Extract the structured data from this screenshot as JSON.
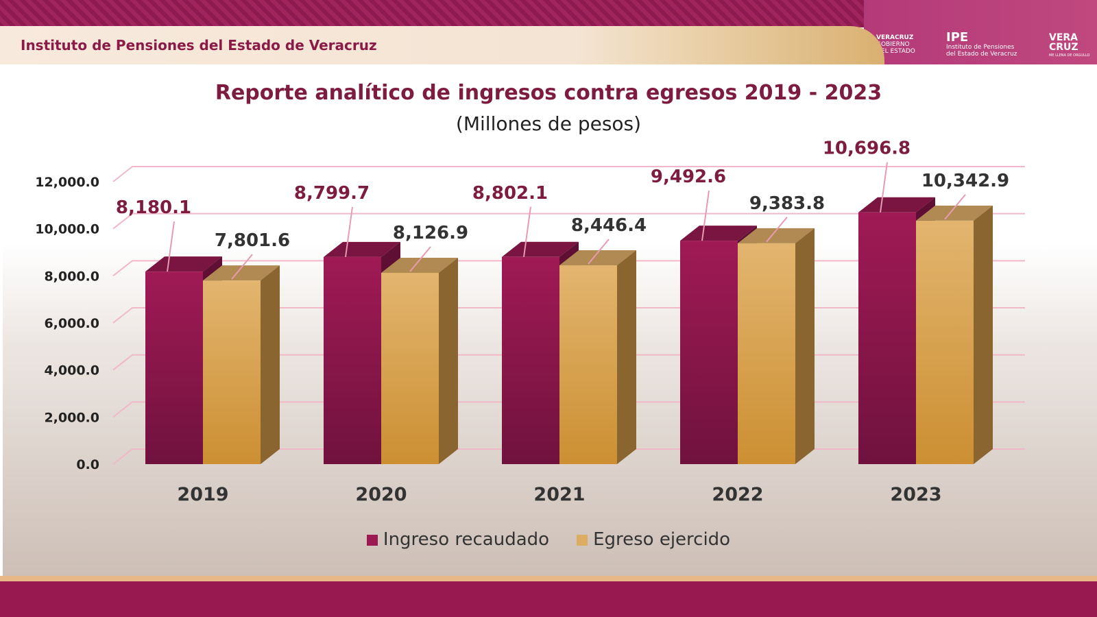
{
  "header": {
    "title": "Instituto de Pensiones del Estado de Veracruz"
  },
  "logos": {
    "gobierno": [
      "VERACRUZ",
      "GOBIERNO",
      "DEL ESTADO"
    ],
    "ipe": {
      "name": "IPE",
      "line1": "Instituto de Pensiones",
      "line2": "del Estado de Veracruz"
    },
    "veracruz": {
      "name": "VERA CRUZ",
      "tagline": "ME LLENA DE ORGULLO"
    }
  },
  "chart_data": {
    "type": "bar",
    "title": "Reporte analítico de ingresos contra egresos 2019 - 2023",
    "subtitle": "(Millones de pesos)",
    "categories": [
      "2019",
      "2020",
      "2021",
      "2022",
      "2023"
    ],
    "series": [
      {
        "name": "Ingreso recaudado",
        "color": "#9b1a52",
        "values": [
          8180.1,
          8799.7,
          8802.1,
          9492.6,
          10696.8
        ],
        "labels": [
          "8,180.1",
          "8,799.7",
          "8,802.1",
          "9,492.6",
          "10,696.8"
        ]
      },
      {
        "name": "Egreso ejercido",
        "color": "#ddad64",
        "values": [
          7801.6,
          8126.9,
          8446.4,
          9383.8,
          10342.9
        ],
        "labels": [
          "7,801.6",
          "8,126.9",
          "8,446.4",
          "9,383.8",
          "10,342.9"
        ]
      }
    ],
    "yticks": [
      "0.0",
      "2,000.0",
      "4,000.0",
      "6,000.0",
      "8,000.0",
      "10,000.0",
      "12,000.0"
    ],
    "ylim": [
      0,
      12000
    ],
    "grid": true,
    "style": "3d-column",
    "legend_position": "bottom"
  }
}
